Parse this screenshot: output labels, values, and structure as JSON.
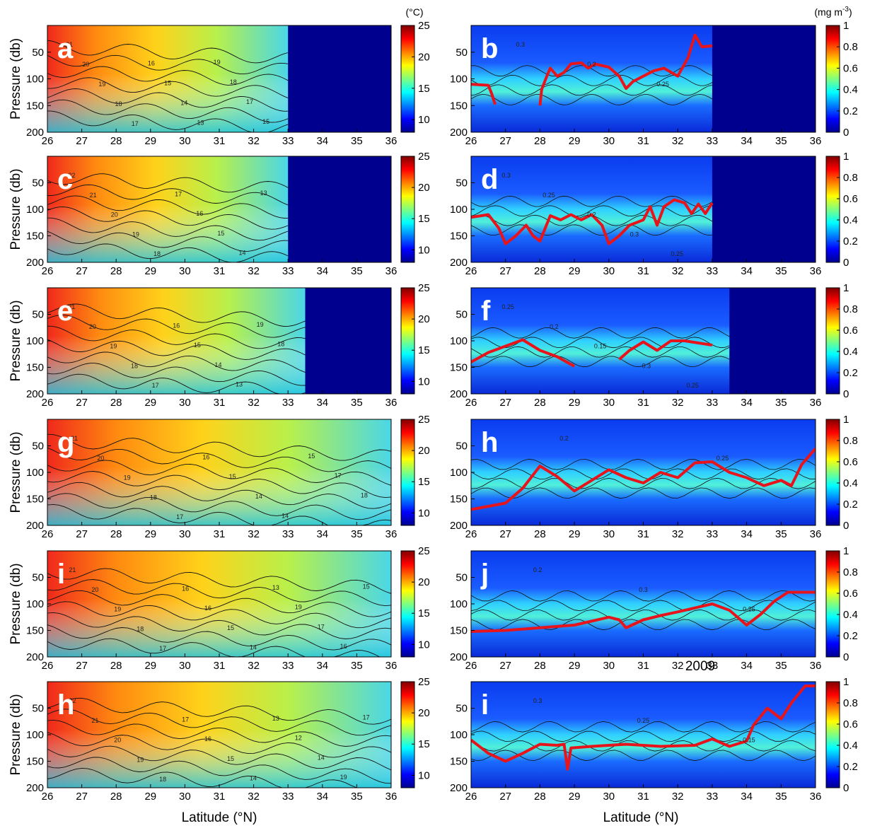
{
  "figure": {
    "temperature_unit": "(°C)",
    "chlorophyll_unit_base": "(mg m",
    "chlorophyll_unit_exp": "-3",
    "chlorophyll_unit_close": ")",
    "xlabel": "Latitude (°N)",
    "ylabel": "Pressure (db)",
    "stray_label": "2009"
  },
  "chart_data": [
    {
      "id": "a",
      "type": "heatmap",
      "variable": "temperature",
      "panel_label": "a",
      "xlabel": "",
      "ylabel": "Pressure (db)",
      "xlim": [
        26,
        36
      ],
      "ylim": [
        200,
        0
      ],
      "xticks": [
        26,
        27,
        28,
        29,
        30,
        31,
        32,
        33,
        34,
        35,
        36
      ],
      "yticks": [
        50,
        100,
        150,
        200
      ],
      "clim": [
        8,
        25
      ],
      "colorbar_ticks": [
        10,
        15,
        20,
        25
      ],
      "data_max_latitude": 33.0,
      "contour_labels": [
        "21",
        "20",
        "19",
        "18",
        "17",
        "16",
        "15",
        "14",
        "13",
        "19",
        "18",
        "17",
        "15"
      ],
      "colormap": "jet"
    },
    {
      "id": "b",
      "type": "heatmap",
      "variable": "chlorophyll",
      "panel_label": "b",
      "xlabel": "",
      "ylabel": "",
      "xlim": [
        26,
        36
      ],
      "ylim": [
        200,
        0
      ],
      "xticks": [
        26,
        27,
        28,
        29,
        30,
        31,
        32,
        33,
        34,
        35,
        36
      ],
      "yticks": [
        50,
        100,
        150,
        200
      ],
      "clim": [
        0,
        1
      ],
      "colorbar_ticks": [
        0,
        0.2,
        0.4,
        0.6,
        0.8,
        1
      ],
      "data_max_latitude": 33.0,
      "contour_labels": [
        "0.3",
        "0.2",
        "0.25"
      ],
      "colormap": "jet",
      "overlay_line": {
        "color": "#e8141b",
        "segments": [
          [
            [
              26,
              110
            ],
            [
              26.5,
              112
            ],
            [
              26.6,
              128
            ],
            [
              26.7,
              148
            ]
          ],
          [
            [
              28.0,
              150
            ],
            [
              28.05,
              120
            ],
            [
              28.2,
              95
            ],
            [
              28.3,
              80
            ],
            [
              28.5,
              95
            ],
            [
              28.7,
              88
            ],
            [
              28.9,
              72
            ],
            [
              29.2,
              70
            ],
            [
              29.4,
              80
            ],
            [
              29.6,
              72
            ],
            [
              30.0,
              78
            ],
            [
              30.3,
              95
            ],
            [
              30.5,
              118
            ],
            [
              30.7,
              105
            ],
            [
              31.0,
              95
            ],
            [
              31.3,
              85
            ],
            [
              31.6,
              80
            ],
            [
              32.0,
              95
            ],
            [
              32.3,
              60
            ],
            [
              32.5,
              18
            ],
            [
              32.7,
              40
            ],
            [
              33.0,
              38
            ]
          ]
        ]
      }
    },
    {
      "id": "c",
      "type": "heatmap",
      "variable": "temperature",
      "panel_label": "c",
      "xlabel": "",
      "ylabel": "Pressure (db)",
      "xlim": [
        26,
        36
      ],
      "ylim": [
        200,
        0
      ],
      "xticks": [
        26,
        27,
        28,
        29,
        30,
        31,
        32,
        33,
        34,
        35,
        36
      ],
      "yticks": [
        50,
        100,
        150,
        200
      ],
      "clim": [
        8,
        25
      ],
      "colorbar_ticks": [
        10,
        15,
        20,
        25
      ],
      "data_max_latitude": 33.0,
      "contour_labels": [
        "22",
        "21",
        "20",
        "19",
        "18",
        "17",
        "16",
        "15",
        "14",
        "13"
      ],
      "colormap": "jet"
    },
    {
      "id": "d",
      "type": "heatmap",
      "variable": "chlorophyll",
      "panel_label": "d",
      "xlabel": "",
      "ylabel": "",
      "xlim": [
        26,
        36
      ],
      "ylim": [
        200,
        0
      ],
      "xticks": [
        26,
        27,
        28,
        29,
        30,
        31,
        32,
        33,
        34,
        35,
        36
      ],
      "yticks": [
        50,
        100,
        150,
        200
      ],
      "clim": [
        0,
        1
      ],
      "colorbar_ticks": [
        0,
        0.2,
        0.4,
        0.6,
        0.8,
        1
      ],
      "data_max_latitude": 33.0,
      "contour_labels": [
        "0.3",
        "0.25",
        "0.2",
        "0.3",
        "0.25"
      ],
      "colormap": "jet",
      "overlay_line": {
        "color": "#e8141b",
        "segments": [
          [
            [
              26,
              115
            ],
            [
              26.5,
              110
            ],
            [
              26.8,
              135
            ],
            [
              27.0,
              165
            ],
            [
              27.3,
              150
            ],
            [
              27.6,
              130
            ],
            [
              27.8,
              150
            ],
            [
              28.0,
              160
            ],
            [
              28.3,
              112
            ],
            [
              28.6,
              120
            ],
            [
              28.9,
              110
            ],
            [
              29.2,
              120
            ],
            [
              29.5,
              110
            ],
            [
              29.8,
              130
            ],
            [
              30.0,
              165
            ],
            [
              30.3,
              150
            ],
            [
              30.6,
              130
            ],
            [
              31.0,
              120
            ],
            [
              31.2,
              95
            ],
            [
              31.4,
              130
            ],
            [
              31.6,
              95
            ],
            [
              31.9,
              82
            ],
            [
              32.2,
              88
            ],
            [
              32.4,
              108
            ],
            [
              32.6,
              90
            ],
            [
              32.8,
              108
            ],
            [
              33.0,
              88
            ]
          ]
        ]
      }
    },
    {
      "id": "e",
      "type": "heatmap",
      "variable": "temperature",
      "panel_label": "e",
      "xlabel": "",
      "ylabel": "Pressure (db)",
      "xlim": [
        26,
        36
      ],
      "ylim": [
        200,
        0
      ],
      "xticks": [
        26,
        27,
        28,
        29,
        30,
        31,
        32,
        33,
        34,
        35,
        36
      ],
      "yticks": [
        50,
        100,
        150,
        200
      ],
      "clim": [
        8,
        25
      ],
      "colorbar_ticks": [
        10,
        15,
        20,
        25
      ],
      "data_max_latitude": 33.5,
      "contour_labels": [
        "21",
        "20",
        "19",
        "18",
        "17",
        "16",
        "15",
        "14",
        "13",
        "19",
        "18"
      ],
      "colormap": "jet"
    },
    {
      "id": "f",
      "type": "heatmap",
      "variable": "chlorophyll",
      "panel_label": "f",
      "xlabel": "",
      "ylabel": "",
      "xlim": [
        26,
        36
      ],
      "ylim": [
        200,
        0
      ],
      "xticks": [
        26,
        27,
        28,
        29,
        30,
        31,
        32,
        33,
        34,
        35,
        36
      ],
      "yticks": [
        50,
        100,
        150,
        200
      ],
      "clim": [
        0,
        1
      ],
      "colorbar_ticks": [
        0,
        0.2,
        0.4,
        0.6,
        0.8,
        1
      ],
      "data_max_latitude": 33.5,
      "contour_labels": [
        "0.25",
        "0.2",
        "0.15",
        "0.3",
        "0.25"
      ],
      "colormap": "jet",
      "overlay_line": {
        "color": "#e8141b",
        "segments": [
          [
            [
              26,
              140
            ],
            [
              26.5,
              122
            ],
            [
              27.0,
              110
            ],
            [
              27.5,
              98
            ],
            [
              28.0,
              118
            ],
            [
              28.5,
              130
            ],
            [
              29.0,
              148
            ]
          ],
          [
            [
              30.3,
              135
            ],
            [
              30.6,
              118
            ],
            [
              31.0,
              102
            ],
            [
              31.4,
              118
            ],
            [
              31.8,
              100
            ],
            [
              32.2,
              100
            ],
            [
              33.0,
              108
            ]
          ]
        ]
      }
    },
    {
      "id": "g",
      "type": "heatmap",
      "variable": "temperature",
      "panel_label": "g",
      "xlabel": "",
      "ylabel": "Pressure (db)",
      "xlim": [
        26,
        36
      ],
      "ylim": [
        200,
        0
      ],
      "xticks": [
        26,
        27,
        28,
        29,
        30,
        31,
        32,
        33,
        34,
        35,
        36
      ],
      "yticks": [
        50,
        100,
        150,
        200
      ],
      "clim": [
        8,
        25
      ],
      "colorbar_ticks": [
        10,
        15,
        20,
        25
      ],
      "data_max_latitude": 36.0,
      "contour_labels": [
        "21",
        "20",
        "19",
        "18",
        "17",
        "16",
        "15",
        "14",
        "14",
        "15",
        "17",
        "18"
      ],
      "colormap": "jet"
    },
    {
      "id": "h",
      "type": "heatmap",
      "variable": "chlorophyll",
      "panel_label": "h",
      "xlabel": "",
      "ylabel": "",
      "xlim": [
        26,
        36
      ],
      "ylim": [
        200,
        0
      ],
      "xticks": [
        26,
        27,
        28,
        29,
        30,
        31,
        32,
        33,
        34,
        35,
        36
      ],
      "yticks": [
        50,
        100,
        150,
        200
      ],
      "clim": [
        0,
        1
      ],
      "colorbar_ticks": [
        0,
        0.2,
        0.4,
        0.6,
        0.8,
        1
      ],
      "data_max_latitude": 36.0,
      "contour_labels": [
        "0.2",
        "0.25"
      ],
      "colormap": "jet",
      "overlay_line": {
        "color": "#e8141b",
        "segments": [
          [
            [
              26,
              170
            ],
            [
              27,
              158
            ],
            [
              27.5,
              130
            ],
            [
              28,
              88
            ],
            [
              28.5,
              108
            ],
            [
              29,
              135
            ],
            [
              29.5,
              115
            ],
            [
              30,
              95
            ],
            [
              30.5,
              110
            ],
            [
              31,
              120
            ],
            [
              31.5,
              100
            ],
            [
              32,
              110
            ],
            [
              32.5,
              82
            ],
            [
              33,
              80
            ],
            [
              33.5,
              100
            ],
            [
              34,
              110
            ],
            [
              34.5,
              125
            ],
            [
              35,
              115
            ],
            [
              35.3,
              125
            ],
            [
              35.6,
              85
            ],
            [
              36,
              55
            ]
          ]
        ]
      }
    },
    {
      "id": "i",
      "type": "heatmap",
      "variable": "temperature",
      "panel_label": "i",
      "xlabel": "",
      "ylabel": "Pressure (db)",
      "xlim": [
        26,
        36
      ],
      "ylim": [
        200,
        0
      ],
      "xticks": [
        26,
        27,
        28,
        29,
        30,
        31,
        32,
        33,
        34,
        35,
        36
      ],
      "yticks": [
        50,
        100,
        150,
        200
      ],
      "clim": [
        8,
        25
      ],
      "colorbar_ticks": [
        10,
        15,
        20,
        25
      ],
      "data_max_latitude": 36.0,
      "contour_labels": [
        "21",
        "20",
        "19",
        "18",
        "17",
        "16",
        "16",
        "15",
        "14",
        "13",
        "19",
        "17",
        "16",
        "15"
      ],
      "colormap": "jet"
    },
    {
      "id": "j",
      "type": "heatmap",
      "variable": "chlorophyll",
      "panel_label": "j",
      "xlabel": "",
      "ylabel": "",
      "xlim": [
        26,
        36
      ],
      "ylim": [
        200,
        0
      ],
      "xticks": [
        26,
        27,
        28,
        29,
        30,
        31,
        32,
        33,
        34,
        35,
        36
      ],
      "yticks": [
        50,
        100,
        150,
        200
      ],
      "clim": [
        0,
        1
      ],
      "colorbar_ticks": [
        0,
        0.2,
        0.4,
        0.6,
        0.8,
        1
      ],
      "data_max_latitude": 36.0,
      "contour_labels": [
        "0.2",
        "0.3",
        "0.25"
      ],
      "colormap": "jet",
      "overlay_line": {
        "color": "#e8141b",
        "segments": [
          [
            [
              26,
              152
            ],
            [
              27,
              150
            ],
            [
              28,
              145
            ],
            [
              29,
              140
            ],
            [
              30,
              125
            ],
            [
              30.3,
              130
            ],
            [
              30.5,
              145
            ],
            [
              31,
              130
            ],
            [
              31.5,
              122
            ],
            [
              32,
              115
            ],
            [
              33,
              100
            ],
            [
              33.5,
              112
            ],
            [
              34,
              140
            ],
            [
              34.4,
              120
            ],
            [
              34.8,
              95
            ],
            [
              35.2,
              78
            ],
            [
              36,
              78
            ]
          ]
        ]
      }
    },
    {
      "id": "k",
      "type": "heatmap",
      "variable": "temperature",
      "panel_label": "h",
      "xlabel": "Latitude (°N)",
      "ylabel": "Pressure (db)",
      "xlim": [
        26,
        36
      ],
      "ylim": [
        200,
        0
      ],
      "xticks": [
        26,
        27,
        28,
        29,
        30,
        31,
        32,
        33,
        34,
        35,
        36
      ],
      "yticks": [
        50,
        100,
        150,
        200
      ],
      "clim": [
        8,
        25
      ],
      "colorbar_ticks": [
        10,
        15,
        20,
        25
      ],
      "data_max_latitude": 36.0,
      "contour_labels": [
        "22",
        "21",
        "20",
        "19",
        "18",
        "17",
        "16",
        "15",
        "14",
        "13",
        "12",
        "14",
        "19",
        "17"
      ],
      "colormap": "jet"
    },
    {
      "id": "l",
      "type": "heatmap",
      "variable": "chlorophyll",
      "panel_label": "i",
      "xlabel": "Latitude (°N)",
      "ylabel": "",
      "xlim": [
        26,
        36
      ],
      "ylim": [
        200,
        0
      ],
      "xticks": [
        26,
        27,
        28,
        29,
        30,
        31,
        32,
        33,
        34,
        35,
        36
      ],
      "yticks": [
        50,
        100,
        150,
        200
      ],
      "clim": [
        0,
        1
      ],
      "colorbar_ticks": [
        0,
        0.2,
        0.4,
        0.6,
        0.8,
        1
      ],
      "data_max_latitude": 36.0,
      "contour_labels": [
        "0.3",
        "0.25",
        "0.15"
      ],
      "colormap": "jet",
      "overlay_line": {
        "color": "#e8141b",
        "segments": [
          [
            [
              26,
              110
            ],
            [
              26.5,
              135
            ],
            [
              27,
              150
            ],
            [
              27.5,
              135
            ],
            [
              28,
              118
            ],
            [
              28.5,
              120
            ],
            [
              28.7,
              118
            ],
            [
              28.8,
              165
            ],
            [
              28.9,
              125
            ],
            [
              29.5,
              122
            ],
            [
              30.5,
              118
            ],
            [
              31.5,
              122
            ],
            [
              32.5,
              120
            ],
            [
              33,
              108
            ],
            [
              33.5,
              122
            ],
            [
              34,
              112
            ],
            [
              34.2,
              82
            ],
            [
              34.6,
              50
            ],
            [
              35,
              70
            ],
            [
              35.3,
              40
            ],
            [
              35.7,
              8
            ],
            [
              36,
              8
            ]
          ]
        ]
      }
    }
  ]
}
